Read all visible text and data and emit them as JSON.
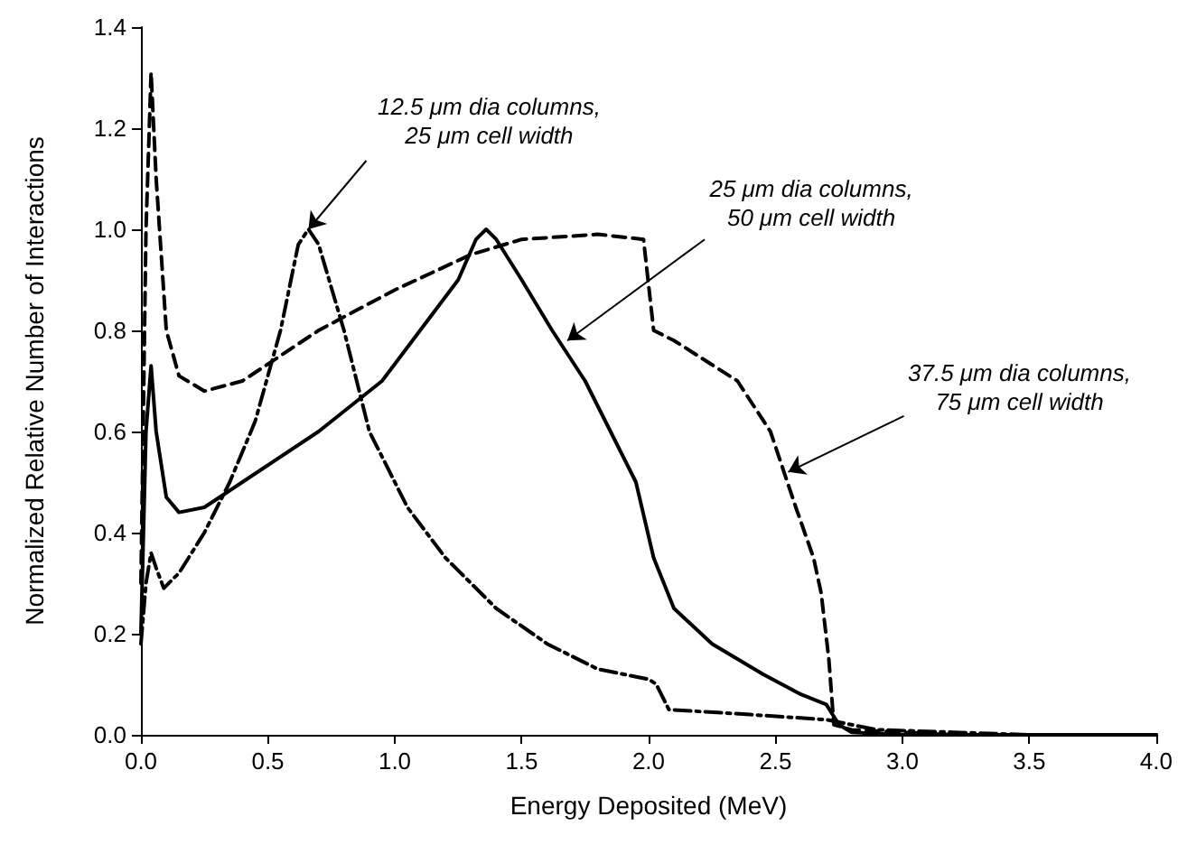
{
  "chart_data": {
    "type": "line",
    "xlabel": "Energy Deposited (MeV)",
    "ylabel": "Normalized Relative Number of Interactions",
    "xlim": [
      0,
      4
    ],
    "xticks": [
      {
        "value": 0,
        "label": "0.0"
      },
      {
        "value": 0.5,
        "label": "0.5"
      },
      {
        "value": 1,
        "label": "1.0"
      },
      {
        "value": 1.5,
        "label": "1.5"
      },
      {
        "value": 2,
        "label": "2.0"
      },
      {
        "value": 2.5,
        "label": "2.5"
      },
      {
        "value": 3,
        "label": "3.0"
      },
      {
        "value": 3.5,
        "label": "3.5"
      },
      {
        "value": 4,
        "label": "4.0"
      }
    ],
    "ylim": [
      0,
      1.4
    ],
    "yticks": [
      {
        "value": 0,
        "label": "0.0"
      },
      {
        "value": 0.2,
        "label": "0.2"
      },
      {
        "value": 0.4,
        "label": "0.4"
      },
      {
        "value": 0.6,
        "label": "0.6"
      },
      {
        "value": 0.8,
        "label": "0.8"
      },
      {
        "value": 1,
        "label": "1.0"
      },
      {
        "value": 1.2,
        "label": "1.2"
      },
      {
        "value": 1.4,
        "label": "1.4"
      }
    ],
    "grid": false,
    "marker": "none",
    "series": [
      {
        "color": "#000000",
        "line_style": "dotted",
        "x": [
          0,
          0.02,
          0.04,
          0.06,
          0.09,
          0.15,
          0.25,
          0.35,
          0.45,
          0.55,
          0.62,
          0.66,
          0.7,
          0.8,
          0.9,
          1.05,
          1.2,
          1.4,
          1.6,
          1.8,
          2.0,
          2.03,
          2.08,
          2.4,
          2.7,
          2.9,
          3.2,
          3.5,
          4.0
        ],
        "values": [
          0.18,
          0.3,
          0.36,
          0.33,
          0.29,
          0.32,
          0.4,
          0.5,
          0.62,
          0.8,
          0.97,
          1.0,
          0.97,
          0.8,
          0.6,
          0.45,
          0.35,
          0.25,
          0.18,
          0.13,
          0.11,
          0.1,
          0.05,
          0.04,
          0.03,
          0.01,
          0.005,
          0,
          0
        ]
      },
      {
        "color": "#000000",
        "line_style": "solid",
        "x": [
          0,
          0.02,
          0.04,
          0.06,
          0.1,
          0.15,
          0.25,
          0.4,
          0.7,
          0.95,
          1.1,
          1.25,
          1.32,
          1.36,
          1.4,
          1.5,
          1.62,
          1.75,
          1.85,
          1.95,
          2.02,
          2.1,
          2.25,
          2.45,
          2.6,
          2.7,
          2.75,
          2.8,
          3.0,
          4.0
        ],
        "values": [
          0.2,
          0.6,
          0.73,
          0.6,
          0.47,
          0.44,
          0.45,
          0.5,
          0.6,
          0.7,
          0.8,
          0.9,
          0.98,
          1.0,
          0.98,
          0.9,
          0.8,
          0.7,
          0.6,
          0.5,
          0.35,
          0.25,
          0.18,
          0.12,
          0.08,
          0.06,
          0.02,
          0.005,
          0,
          0
        ]
      },
      {
        "color": "#000000",
        "line_style": "dashed",
        "x": [
          0,
          0.02,
          0.04,
          0.06,
          0.1,
          0.15,
          0.25,
          0.4,
          0.7,
          1.0,
          1.3,
          1.5,
          1.8,
          1.98,
          2.02,
          2.1,
          2.35,
          2.48,
          2.58,
          2.65,
          2.68,
          2.71,
          2.73,
          2.8,
          3.0,
          3.2,
          4.0
        ],
        "values": [
          0.3,
          1.0,
          1.31,
          1.1,
          0.8,
          0.71,
          0.68,
          0.7,
          0.8,
          0.88,
          0.95,
          0.98,
          0.99,
          0.98,
          0.8,
          0.78,
          0.7,
          0.6,
          0.45,
          0.35,
          0.28,
          0.15,
          0.02,
          0.01,
          0.005,
          0,
          0
        ]
      }
    ],
    "annotations": [
      {
        "text": "12.5 μm dia columns,\n25 μm cell width",
        "x": 0.66,
        "y": 1.0
      },
      {
        "text": "25 μm dia columns,\n50 μm cell width",
        "x": 1.68,
        "y": 0.78
      },
      {
        "text": "37.5 μm dia columns,\n75 μm cell width",
        "x": 2.55,
        "y": 0.52
      }
    ]
  }
}
